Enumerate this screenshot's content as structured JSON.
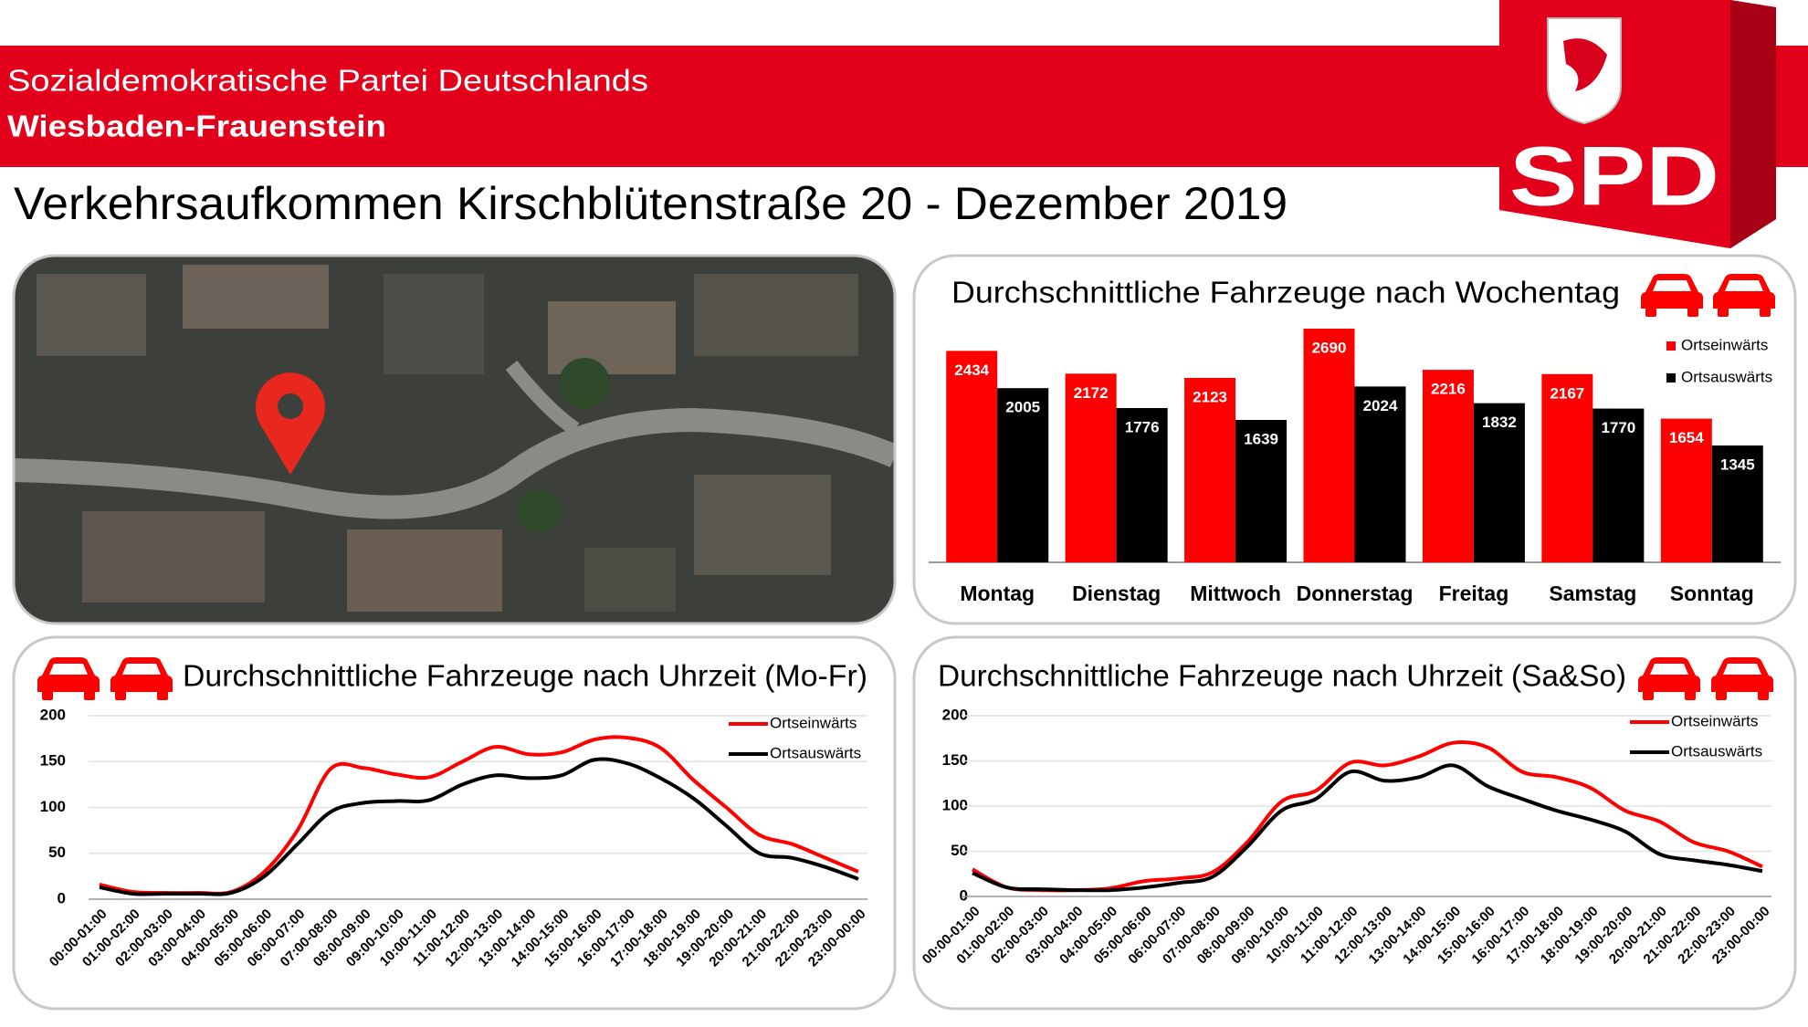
{
  "header": {
    "line1": "Sozialdemokratische Partei Deutschlands",
    "line2": "Wiesbaden-Frauenstein",
    "logo": "SPD"
  },
  "title": "Verkehrsaufkommen Kirschblütenstraße 20 - Dezember 2019",
  "chart_data": [
    {
      "type": "bar",
      "title": "Durchschnittliche Fahrzeuge nach Wochentag",
      "categories": [
        "Montag",
        "Dienstag",
        "Mittwoch",
        "Donnerstag",
        "Freitag",
        "Samstag",
        "Sonntag"
      ],
      "series": [
        {
          "name": "Ortseinwärts",
          "color": "#ff0000",
          "values": [
            2434,
            2172,
            2123,
            2690,
            2216,
            2167,
            1654
          ]
        },
        {
          "name": "Ortsauswärts",
          "color": "#000000",
          "values": [
            2005,
            1776,
            1639,
            2024,
            1832,
            1770,
            1345
          ]
        }
      ]
    },
    {
      "type": "line",
      "title": "Durchschnittliche Fahrzeuge nach Uhrzeit (Mo-Fr)",
      "categories": [
        "00:00-01:00",
        "01:00-02:00",
        "02:00-03:00",
        "03:00-04:00",
        "04:00-05:00",
        "05:00-06:00",
        "06:00-07:00",
        "07:00-08:00",
        "08:00-09:00",
        "09:00-10:00",
        "10:00-11:00",
        "11:00-12:00",
        "12:00-13:00",
        "13:00-14:00",
        "14:00-15:00",
        "15:00-16:00",
        "16:00-17:00",
        "17:00-18:00",
        "18:00-19:00",
        "19:00-20:00",
        "20:00-21:00",
        "21:00-22:00",
        "22:00-23:00",
        "23:00-00:00"
      ],
      "series": [
        {
          "name": "Ortseinwärts",
          "color": "#ff0000",
          "values": [
            16,
            8,
            7,
            7,
            8,
            30,
            75,
            142,
            143,
            136,
            133,
            150,
            166,
            158,
            160,
            174,
            176,
            165,
            130,
            100,
            70,
            60,
            45,
            30
          ]
        },
        {
          "name": "Ortsauswärts",
          "color": "#000000",
          "values": [
            13,
            6,
            6,
            6,
            7,
            25,
            60,
            95,
            105,
            107,
            108,
            125,
            135,
            132,
            135,
            152,
            148,
            132,
            110,
            80,
            50,
            45,
            35,
            22
          ]
        }
      ],
      "ylim": [
        0,
        200
      ],
      "yticks": [
        0,
        50,
        100,
        150,
        200
      ],
      "grid": true
    },
    {
      "type": "line",
      "title": "Durchschnittliche Fahrzeuge nach Uhrzeit (Sa&So)",
      "categories": [
        "00:00-01:00",
        "01:00-02:00",
        "02:00-03:00",
        "03:00-04:00",
        "04:00-05:00",
        "05:00-06:00",
        "06:00-07:00",
        "07:00-08:00",
        "08:00-09:00",
        "09:00-10:00",
        "10:00-11:00",
        "11:00-12:00",
        "12:00-13:00",
        "13:00-14:00",
        "14:00-15:00",
        "15:00-16:00",
        "16:00-17:00",
        "17:00-18:00",
        "18:00-19:00",
        "19:00-20:00",
        "20:00-21:00",
        "21:00-22:00",
        "22:00-23:00",
        "23:00-00:00"
      ],
      "series": [
        {
          "name": "Ortseinwärts",
          "color": "#ff0000",
          "values": [
            30,
            10,
            7,
            7,
            9,
            17,
            20,
            27,
            60,
            105,
            117,
            148,
            145,
            155,
            170,
            165,
            138,
            132,
            120,
            95,
            83,
            60,
            50,
            33
          ]
        },
        {
          "name": "Ortsauswärts",
          "color": "#000000",
          "values": [
            26,
            10,
            8,
            7,
            7,
            10,
            15,
            22,
            55,
            95,
            108,
            138,
            128,
            132,
            145,
            122,
            108,
            95,
            85,
            72,
            47,
            40,
            35,
            28
          ]
        }
      ],
      "ylim": [
        0,
        200
      ],
      "yticks": [
        0,
        50,
        100,
        150,
        200
      ],
      "grid": true
    }
  ]
}
